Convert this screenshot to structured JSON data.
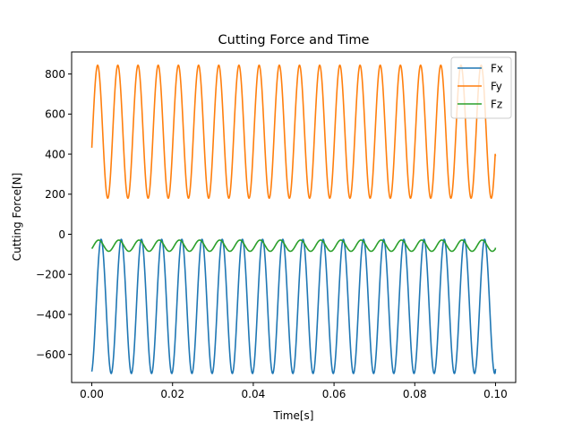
{
  "chart_data": {
    "type": "line",
    "title": "Cutting Force and Time",
    "xlabel": "Time[s]",
    "ylabel": "Cutting Force[N]",
    "xlim": [
      -0.005,
      0.105
    ],
    "ylim": [
      -740,
      910
    ],
    "x_ticks": [
      0.0,
      0.02,
      0.04,
      0.06,
      0.08,
      0.1
    ],
    "x_tick_labels": [
      "0.00",
      "0.02",
      "0.04",
      "0.06",
      "0.08",
      "0.10"
    ],
    "y_ticks": [
      -600,
      -400,
      -200,
      0,
      200,
      400,
      600,
      800
    ],
    "y_tick_labels": [
      "−600",
      "−400",
      "−200",
      "0",
      "200",
      "400",
      "600",
      "800"
    ],
    "grid": false,
    "legend_position": "top-right",
    "x_range": [
      0.0,
      0.1
    ],
    "series": [
      {
        "name": "Fx",
        "color": "#1f77b4",
        "form": "sinusoid",
        "mean": -360,
        "amplitude": 335,
        "period": 0.005,
        "value_at_start": -685,
        "value_at_end": -672
      },
      {
        "name": "Fy",
        "color": "#ff7f0e",
        "form": "sinusoid",
        "mean": 512,
        "amplitude": 332,
        "period": 0.005,
        "value_at_start": 432,
        "value_at_end": 390
      },
      {
        "name": "Fz",
        "color": "#2ca02c",
        "form": "sinusoid",
        "mean": -57,
        "amplitude": 28,
        "period": 0.005,
        "value_at_start": -72,
        "value_at_end": -67
      }
    ]
  }
}
